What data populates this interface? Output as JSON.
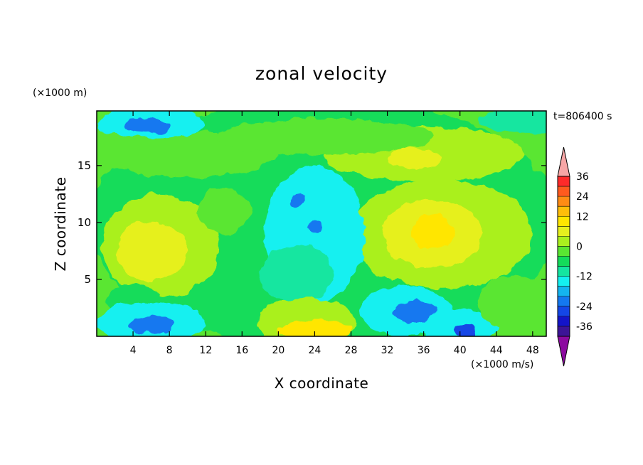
{
  "chart_data": {
    "type": "heatmap",
    "title": "zonal velocity",
    "xlabel": "X coordinate",
    "ylabel": "Z coordinate",
    "x_unit": "(×1000 m/s)",
    "y_unit": "(×1000 m)",
    "time_label": "t=806400 s",
    "xlim": [
      0,
      49.5
    ],
    "ylim": [
      0,
      19.8
    ],
    "x_ticks": [
      4,
      8,
      12,
      16,
      20,
      24,
      28,
      32,
      36,
      40,
      44,
      48
    ],
    "y_ticks": [
      5,
      10,
      15
    ],
    "colorbar": {
      "ticks": [
        36,
        24,
        12,
        0,
        -12,
        -24,
        -36
      ],
      "levels": [
        {
          "from": 36,
          "color": "#ff2a2a"
        },
        {
          "from": 30,
          "color": "#ff5a1e"
        },
        {
          "from": 24,
          "color": "#ff8c14"
        },
        {
          "from": 18,
          "color": "#ffbe0a"
        },
        {
          "from": 12,
          "color": "#ffe600"
        },
        {
          "from": 8,
          "color": "#e6f01e"
        },
        {
          "from": 4,
          "color": "#aaf01e"
        },
        {
          "from": 0,
          "color": "#5ae632"
        },
        {
          "from": -4,
          "color": "#14dc5a"
        },
        {
          "from": -8,
          "color": "#14e6a0"
        },
        {
          "from": -12,
          "color": "#14f0f0"
        },
        {
          "from": -16,
          "color": "#14b4f0"
        },
        {
          "from": -20,
          "color": "#1478f0"
        },
        {
          "from": -24,
          "color": "#1446e6"
        },
        {
          "from": -30,
          "color": "#1414c8"
        },
        {
          "from": -36,
          "color": "#3c1496"
        }
      ],
      "over_color": "#f7a6a6",
      "under_color": "#8c0aa0"
    },
    "field_regions": [
      {
        "x": 25,
        "z": 10,
        "rx": 26,
        "rz": 11,
        "value": -3
      },
      {
        "x": 7,
        "z": 8,
        "rx": 6.5,
        "rz": 4.5,
        "value": 5
      },
      {
        "x": 6,
        "z": 7.5,
        "rx": 4,
        "rz": 2.6,
        "value": 9
      },
      {
        "x": 4,
        "z": 3,
        "rx": 3,
        "rz": 1.6,
        "value": -4
      },
      {
        "x": 38,
        "z": 9,
        "rx": 10,
        "rz": 4.8,
        "value": 5
      },
      {
        "x": 37,
        "z": 9,
        "rx": 5.5,
        "rz": 3,
        "value": 9
      },
      {
        "x": 37,
        "z": 9.2,
        "rx": 2.5,
        "rz": 1.5,
        "value": 13
      },
      {
        "x": 36,
        "z": 16,
        "rx": 11,
        "rz": 2.4,
        "value": 5
      },
      {
        "x": 35,
        "z": 15.6,
        "rx": 3,
        "rz": 0.9,
        "value": 10
      },
      {
        "x": 10,
        "z": 16,
        "rx": 10,
        "rz": 2,
        "value": 2
      },
      {
        "x": 25,
        "z": 17.5,
        "rx": 12,
        "rz": 1.6,
        "value": 1
      },
      {
        "x": 24,
        "z": 9,
        "rx": 5.5,
        "rz": 6,
        "value": -10
      },
      {
        "x": 22,
        "z": 5.5,
        "rx": 4,
        "rz": 2.5,
        "value": -7
      },
      {
        "x": 23,
        "z": 1.2,
        "rx": 5.5,
        "rz": 2.2,
        "value": 6
      },
      {
        "x": 24,
        "z": 0.5,
        "rx": 4,
        "rz": 1,
        "value": 13
      },
      {
        "x": 34,
        "z": 2.2,
        "rx": 5,
        "rz": 2.2,
        "value": -10
      },
      {
        "x": 35,
        "z": 2.2,
        "rx": 2.5,
        "rz": 0.9,
        "value": -18
      },
      {
        "x": 6,
        "z": 1.2,
        "rx": 6,
        "rz": 1.8,
        "value": -10
      },
      {
        "x": 6,
        "z": 1,
        "rx": 2.5,
        "rz": 0.8,
        "value": -18
      },
      {
        "x": 40,
        "z": 0.7,
        "rx": 4,
        "rz": 1.6,
        "value": -12
      },
      {
        "x": 40.5,
        "z": 0.4,
        "rx": 1.2,
        "rz": 0.6,
        "value": -24
      },
      {
        "x": 6,
        "z": 18.8,
        "rx": 6,
        "rz": 1.4,
        "value": -12
      },
      {
        "x": 5.5,
        "z": 18.5,
        "rx": 2.5,
        "rz": 0.7,
        "value": -18
      },
      {
        "x": 48,
        "z": 19,
        "rx": 6,
        "rz": 1.2,
        "value": -7
      },
      {
        "x": 22,
        "z": 12,
        "rx": 0.8,
        "rz": 0.6,
        "value": -18
      },
      {
        "x": 24,
        "z": 9.7,
        "rx": 0.7,
        "rz": 0.5,
        "value": -18
      },
      {
        "x": 14,
        "z": 11,
        "rx": 3,
        "rz": 2,
        "value": 1
      },
      {
        "x": 46,
        "z": 3,
        "rx": 4,
        "rz": 2.5,
        "value": 3
      }
    ]
  }
}
